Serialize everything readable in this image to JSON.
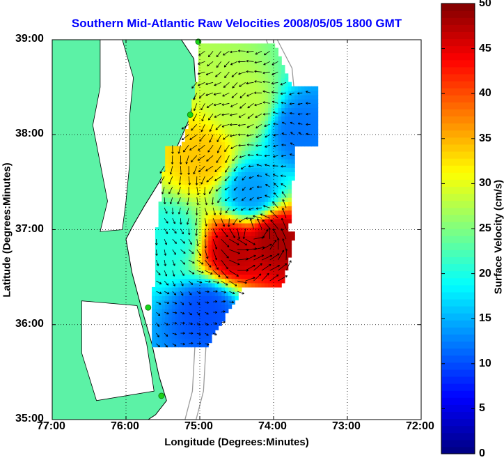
{
  "title": "Southern Mid-Atlantic Raw Velocities 2008/05/05 1800 GMT",
  "xlabel": "Longitude (Degrees:Minutes)",
  "ylabel": "Latitude (Degrees:Minutes)",
  "x_ticks": [
    "77:00",
    "76:00",
    "75:00",
    "74:00",
    "73:00",
    "72:00"
  ],
  "y_ticks": [
    "39:00",
    "38:00",
    "37:00",
    "36:00",
    "35:00"
  ],
  "colorbar": {
    "label": "Surface Velocity (cm/s)",
    "ticks": [
      "0",
      "5",
      "10",
      "15",
      "20",
      "25",
      "30",
      "35",
      "40",
      "45",
      "50"
    ],
    "min": 0,
    "max": 50
  },
  "colors": {
    "title": "#0000ff",
    "land": "#5cf2a6",
    "coastline": "#000000",
    "bathymetry": "#9a9a9a",
    "grid": "#000000",
    "stations": "#19d319"
  },
  "map": {
    "lon_range": [
      -77,
      -72
    ],
    "lat_range": [
      35,
      39
    ],
    "grid": true,
    "stations": [
      {
        "lon": -75.02,
        "lat": 38.98
      },
      {
        "lon": -75.13,
        "lat": 38.21
      },
      {
        "lon": -75.7,
        "lat": 36.18
      },
      {
        "lon": -75.52,
        "lat": 35.25
      }
    ],
    "velocity_regions": [
      {
        "lon": -74.55,
        "lat": 36.78,
        "speed": 47
      },
      {
        "lon": -73.98,
        "lat": 36.9,
        "speed": 48
      },
      {
        "lon": -74.95,
        "lat": 37.75,
        "speed": 34
      },
      {
        "lon": -74.4,
        "lat": 38.3,
        "speed": 28
      },
      {
        "lon": -73.65,
        "lat": 38.05,
        "speed": 12
      },
      {
        "lon": -74.3,
        "lat": 37.4,
        "speed": 14
      },
      {
        "lon": -74.9,
        "lat": 36.15,
        "speed": 10
      },
      {
        "lon": -75.4,
        "lat": 36.9,
        "speed": 20
      }
    ]
  }
}
